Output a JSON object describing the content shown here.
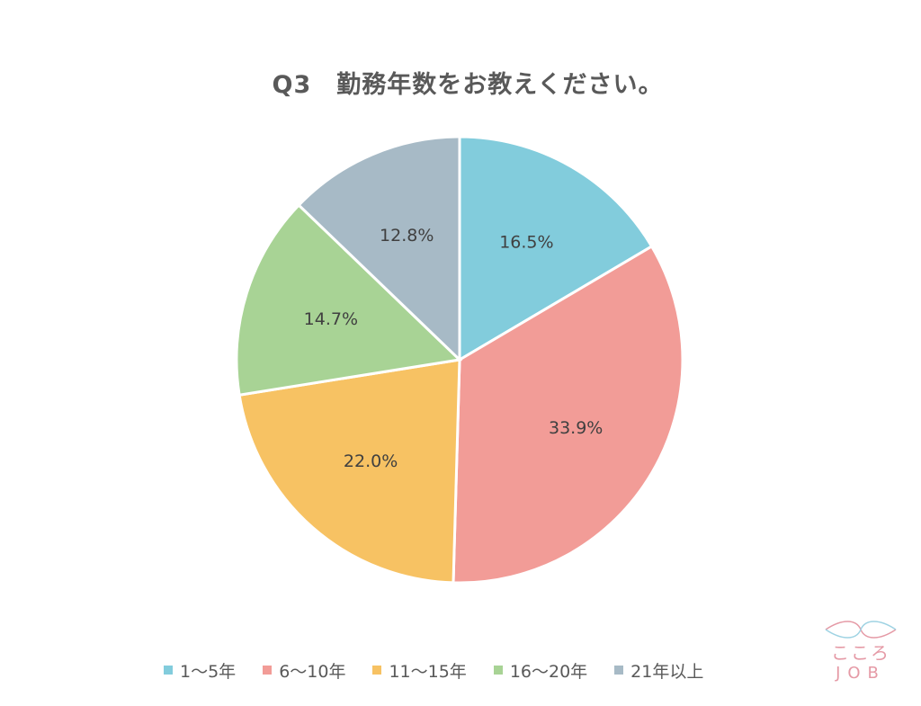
{
  "chart_data": {
    "type": "pie",
    "title": "Q3　勤務年数をお教えください。",
    "categories": [
      "1～5年",
      "6～10年",
      "11～15年",
      "16～20年",
      "21年以上"
    ],
    "values": [
      16.5,
      33.9,
      22.0,
      14.7,
      12.8
    ],
    "value_labels": [
      "16.5%",
      "33.9%",
      "22.0%",
      "14.7%",
      "12.8%"
    ],
    "colors": [
      "#82ccdc",
      "#f29c97",
      "#f7c263",
      "#a8d395",
      "#a7bac6"
    ],
    "start_angle": "12 o'clock",
    "direction": "clockwise",
    "legend_position": "bottom"
  },
  "brand": {
    "logo_text_top": "こころ",
    "logo_text_bottom": "JOB",
    "logo_color": "#e59aa6",
    "logo_wave_color": "#9fd3e3"
  }
}
